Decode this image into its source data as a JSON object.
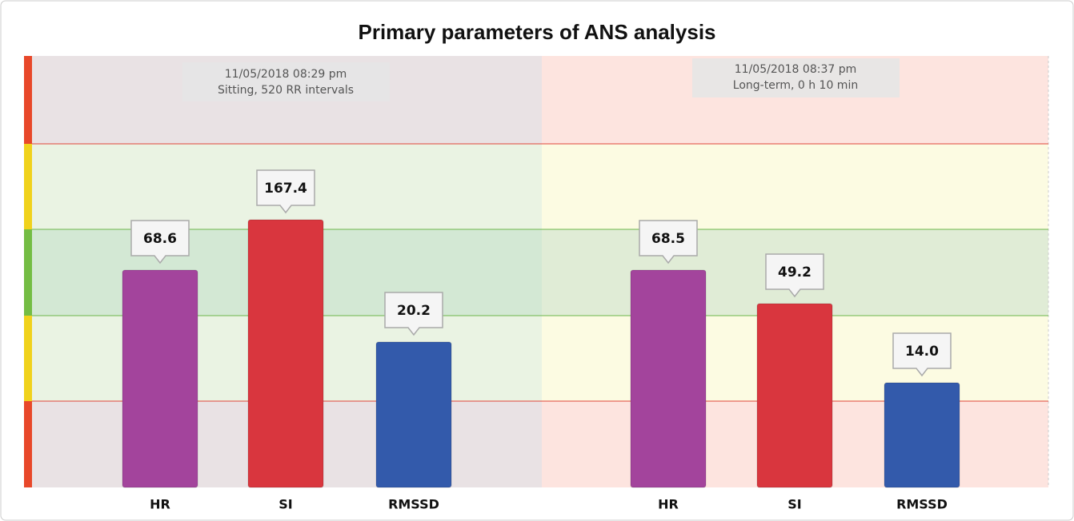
{
  "chart_data": {
    "type": "bar",
    "title": "Primary parameters of ANS analysis",
    "colors": [
      "#a3449c",
      "#d9363e",
      "#335aab"
    ],
    "groups": [
      {
        "timestamp": "11/05/2018 08:29 pm",
        "description": "Sitting, 520 RR intervals",
        "categories": [
          "HR",
          "SI",
          "RMSSD"
        ],
        "values": [
          68.6,
          167.4,
          20.2
        ],
        "value_labels": [
          "68.6",
          "167.4",
          "20.2"
        ]
      },
      {
        "timestamp": "11/05/2018  08:37 pm",
        "description": "Long-term, 0 h 10 min",
        "categories": [
          "HR",
          "SI",
          "RMSSD"
        ],
        "values": [
          68.5,
          49.2,
          14
        ],
        "value_labels": [
          "68.5",
          "49.2",
          "14.0"
        ]
      }
    ]
  }
}
